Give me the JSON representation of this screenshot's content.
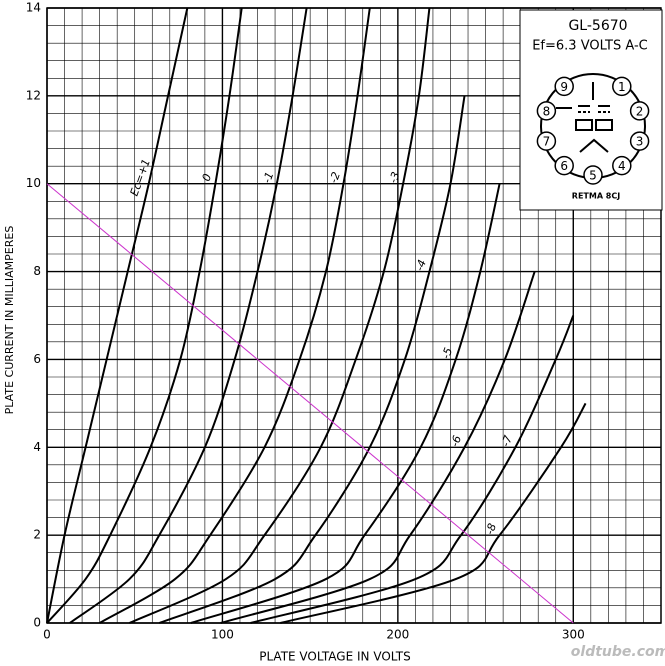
{
  "chart_data": {
    "type": "line",
    "title": "GL-5670",
    "subtitle": "Ef=6.3 VOLTS A-C",
    "basing": "RETMA 8CJ",
    "pins": [
      "1",
      "2",
      "3",
      "4",
      "5",
      "6",
      "7",
      "8",
      "9"
    ],
    "x_label": "PLATE VOLTAGE IN VOLTS",
    "y_label": "PLATE CURRENT IN MILLIAMPERES",
    "watermark": "oldtube.com",
    "xlim": [
      0,
      350
    ],
    "ylim": [
      0,
      14
    ],
    "xticks": [
      0,
      100,
      200,
      300
    ],
    "yticks": [
      0,
      2,
      4,
      6,
      8,
      10,
      12,
      14
    ],
    "grid": true,
    "series": [
      {
        "name": "Ec=+1",
        "color": "#000000",
        "x": [
          0,
          10,
          22,
          34,
          46,
          58,
          69,
          80
        ],
        "values": [
          0,
          2,
          4,
          6,
          8,
          10,
          12,
          14
        ]
      },
      {
        "name": "0",
        "color": "#000000",
        "x": [
          0,
          22,
          36,
          59,
          76,
          87,
          96,
          104,
          111
        ],
        "values": [
          0,
          1,
          2,
          4,
          6,
          8,
          10,
          12,
          14
        ]
      },
      {
        "name": "-1",
        "color": "#000000",
        "x": [
          13,
          47,
          64,
          90,
          107,
          120,
          131,
          140,
          148
        ],
        "values": [
          0,
          1,
          2,
          4,
          6,
          8,
          10,
          12,
          14
        ]
      },
      {
        "name": "-2",
        "color": "#000000",
        "x": [
          30,
          73,
          93,
          124,
          144,
          159,
          169,
          177,
          184
        ],
        "values": [
          0,
          1,
          2,
          4,
          6,
          8,
          10,
          12,
          14
        ]
      },
      {
        "name": "-3",
        "color": "#000000",
        "x": [
          47,
          102,
          124,
          156,
          176,
          192,
          203,
          212,
          218
        ],
        "values": [
          0,
          1,
          2,
          4,
          6,
          8,
          10,
          12,
          14
        ]
      },
      {
        "name": "-4",
        "color": "#000000",
        "x": [
          64,
          130,
          153,
          184,
          204,
          218,
          230,
          238
        ],
        "values": [
          0,
          1,
          2,
          4,
          6,
          8,
          10,
          12
        ]
      },
      {
        "name": "-5",
        "color": "#000000",
        "x": [
          82,
          159,
          181,
          213,
          233,
          247,
          258
        ],
        "values": [
          0,
          1,
          2,
          4,
          6,
          8,
          10
        ]
      },
      {
        "name": "-6",
        "color": "#000000",
        "x": [
          99,
          184,
          207,
          238,
          261,
          278
        ],
        "values": [
          0,
          1,
          2,
          4,
          6,
          8
        ]
      },
      {
        "name": "-7",
        "color": "#000000",
        "x": [
          116,
          210,
          236,
          267,
          290,
          300
        ],
        "values": [
          0,
          1,
          2,
          4,
          6,
          7
        ]
      },
      {
        "name": "-8",
        "color": "#000000",
        "x": [
          133,
          233,
          258,
          293,
          307
        ],
        "values": [
          0,
          1,
          2,
          4,
          5
        ]
      }
    ],
    "load_line": {
      "color": "#cc33cc",
      "x": [
        0,
        300
      ],
      "values": [
        10,
        0
      ]
    }
  }
}
